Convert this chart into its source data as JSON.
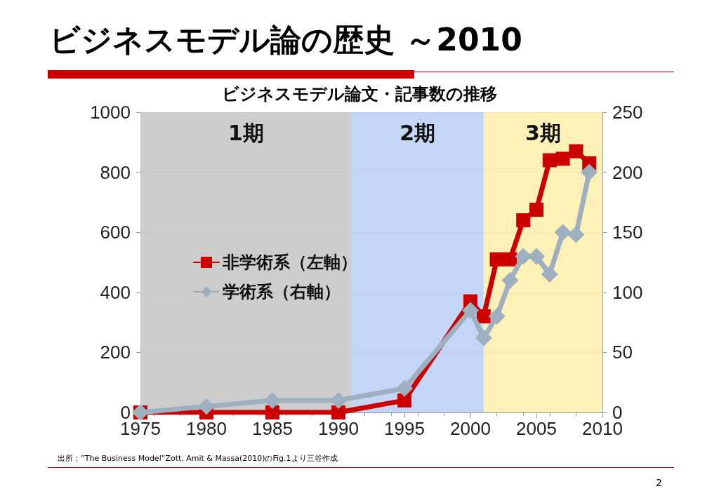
{
  "chart_data": {
    "type": "line",
    "title": "ビジネスモデル論の歴史 ～2010",
    "subtitle": "ビジネスモデル論文・記事数の推移",
    "x": [
      1975,
      1980,
      1985,
      1990,
      1995,
      2000,
      2001,
      2002,
      2003,
      2004,
      2005,
      2006,
      2007,
      2008,
      2009
    ],
    "series": [
      {
        "name": "非学術系（左軸）",
        "color": "#cc0000",
        "marker": "square",
        "values": [
          0,
          0,
          0,
          0,
          40,
          370,
          320,
          510,
          510,
          640,
          675,
          840,
          845,
          870,
          830
        ]
      },
      {
        "name": "学術系（右軸）",
        "color": "#9eafc0",
        "marker": "diamond",
        "axis": "y2",
        "values": [
          0,
          5,
          10,
          10,
          20,
          85,
          62,
          80,
          110,
          130,
          130,
          115,
          150,
          148,
          200
        ]
      }
    ],
    "xlim": [
      1975,
      2010
    ],
    "xticks": [
      1975,
      1980,
      1985,
      1990,
      1995,
      2000,
      2005,
      2010
    ],
    "ylim": [
      0,
      1000
    ],
    "yticks": [
      0,
      200,
      400,
      600,
      800,
      1000
    ],
    "y2lim": [
      0,
      250
    ],
    "y2ticks": [
      0,
      50,
      100,
      150,
      200,
      250
    ],
    "bands": [
      {
        "axis": "x",
        "from": 1975,
        "to": 1991,
        "label": "1期",
        "color": "#c8c8c8"
      },
      {
        "axis": "x",
        "from": 1991,
        "to": 2001,
        "label": "2期",
        "color": "#bcd2f7"
      },
      {
        "axis": "x",
        "from": 2001,
        "to": 2010,
        "label": "3期",
        "color": "#fdf0b0"
      }
    ],
    "grid": "y",
    "legend": "left",
    "line_style": "solid",
    "annotations": [
      "出所：”The Business Model”Zott, Amit & Massa(2010)のFig.1より三谷作成",
      "2"
    ]
  }
}
